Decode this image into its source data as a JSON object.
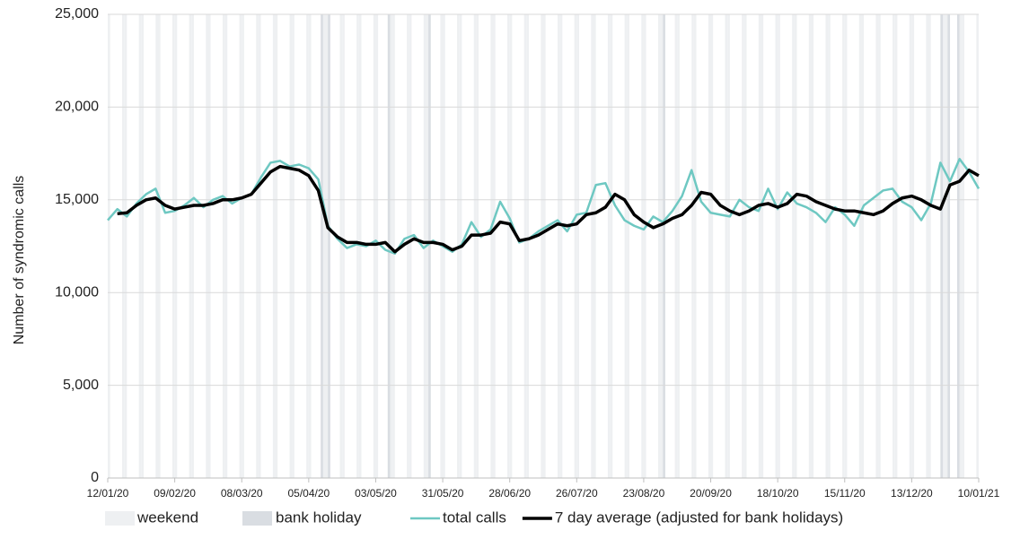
{
  "chart_data": {
    "type": "line",
    "y_label": "Number of syndromic calls",
    "x": [
      "2020-01-12",
      "2020-01-16",
      "2020-01-20",
      "2020-01-24",
      "2020-01-28",
      "2020-02-01",
      "2020-02-05",
      "2020-02-09",
      "2020-02-13",
      "2020-02-17",
      "2020-02-21",
      "2020-02-25",
      "2020-02-29",
      "2020-03-04",
      "2020-03-08",
      "2020-03-12",
      "2020-03-16",
      "2020-03-20",
      "2020-03-24",
      "2020-03-28",
      "2020-04-01",
      "2020-04-05",
      "2020-04-09",
      "2020-04-13",
      "2020-04-17",
      "2020-04-21",
      "2020-04-25",
      "2020-04-29",
      "2020-05-03",
      "2020-05-07",
      "2020-05-11",
      "2020-05-15",
      "2020-05-19",
      "2020-05-23",
      "2020-05-27",
      "2020-05-31",
      "2020-06-04",
      "2020-06-08",
      "2020-06-12",
      "2020-06-16",
      "2020-06-20",
      "2020-06-24",
      "2020-06-28",
      "2020-07-02",
      "2020-07-06",
      "2020-07-10",
      "2020-07-14",
      "2020-07-18",
      "2020-07-22",
      "2020-07-26",
      "2020-07-30",
      "2020-08-03",
      "2020-08-07",
      "2020-08-11",
      "2020-08-15",
      "2020-08-19",
      "2020-08-23",
      "2020-08-27",
      "2020-08-31",
      "2020-09-04",
      "2020-09-08",
      "2020-09-12",
      "2020-09-16",
      "2020-09-20",
      "2020-09-24",
      "2020-09-28",
      "2020-10-02",
      "2020-10-06",
      "2020-10-10",
      "2020-10-14",
      "2020-10-18",
      "2020-10-22",
      "2020-10-26",
      "2020-10-30",
      "2020-11-03",
      "2020-11-07",
      "2020-11-11",
      "2020-11-15",
      "2020-11-19",
      "2020-11-23",
      "2020-11-27",
      "2020-12-01",
      "2020-12-05",
      "2020-12-09",
      "2020-12-13",
      "2020-12-17",
      "2020-12-21",
      "2020-12-25",
      "2020-12-29",
      "2021-01-02",
      "2021-01-06",
      "2021-01-10"
    ],
    "series": [
      {
        "name": "total calls",
        "color": "#6ec8c2",
        "width": 2.5,
        "values": [
          13900,
          14500,
          14100,
          14800,
          15300,
          15600,
          14300,
          14400,
          14700,
          15100,
          14600,
          15000,
          15200,
          14800,
          15100,
          15300,
          16200,
          17000,
          17100,
          16800,
          16900,
          16700,
          16100,
          13600,
          12900,
          12400,
          12600,
          12500,
          12800,
          12300,
          12100,
          12900,
          13100,
          12400,
          12800,
          12500,
          12200,
          12600,
          13800,
          13000,
          13400,
          14900,
          14000,
          12700,
          12900,
          13300,
          13600,
          13900,
          13300,
          14200,
          14300,
          15800,
          15900,
          14700,
          13900,
          13600,
          13400,
          14100,
          13800,
          14400,
          15200,
          16600,
          14900,
          14300,
          14200,
          14100,
          15000,
          14600,
          14400,
          15600,
          14500,
          15400,
          14800,
          14600,
          14300,
          13800,
          14600,
          14200,
          13600,
          14700,
          15100,
          15500,
          15600,
          14900,
          14600,
          13900,
          14800,
          17000,
          16000,
          17200,
          16500,
          15600
        ]
      },
      {
        "name": "7 day average (adjusted for bank holidays)",
        "color": "#000000",
        "width": 3.5,
        "values": [
          null,
          14250,
          14300,
          14700,
          15000,
          15100,
          14700,
          14500,
          14600,
          14700,
          14700,
          14800,
          15000,
          15000,
          15100,
          15300,
          15900,
          16500,
          16800,
          16700,
          16600,
          16300,
          15500,
          13500,
          13000,
          12700,
          12700,
          12600,
          12600,
          12700,
          12200,
          12600,
          12900,
          12700,
          12700,
          12600,
          12300,
          12500,
          13100,
          13100,
          13200,
          13800,
          13700,
          12800,
          12900,
          13100,
          13400,
          13700,
          13600,
          13700,
          14200,
          14300,
          14600,
          15300,
          15000,
          14200,
          13800,
          13500,
          13700,
          14000,
          14200,
          14700,
          15400,
          15300,
          14700,
          14400,
          14200,
          14400,
          14700,
          14800,
          14600,
          14800,
          15300,
          15200,
          14900,
          14700,
          14500,
          14400,
          14400,
          14300,
          14200,
          14400,
          14800,
          15100,
          15200,
          15000,
          14700,
          14500,
          15800,
          16000,
          16600,
          16300
        ]
      }
    ],
    "shading": [
      {
        "name": "weekend",
        "color": "#eef0f2",
        "weekdays": [
          0,
          6
        ]
      },
      {
        "name": "bank holiday",
        "color": "#d9dde2",
        "dates": [
          "2020-04-10",
          "2020-04-13",
          "2020-05-08",
          "2020-05-25",
          "2020-08-31",
          "2020-12-25",
          "2020-12-28",
          "2021-01-01"
        ]
      }
    ],
    "xlim": [
      "2020-01-12",
      "2021-01-10"
    ],
    "xticks": [
      {
        "value": "2020-01-12",
        "label": "12/01/20"
      },
      {
        "value": "2020-02-09",
        "label": "09/02/20"
      },
      {
        "value": "2020-03-08",
        "label": "08/03/20"
      },
      {
        "value": "2020-04-05",
        "label": "05/04/20"
      },
      {
        "value": "2020-05-03",
        "label": "03/05/20"
      },
      {
        "value": "2020-05-31",
        "label": "31/05/20"
      },
      {
        "value": "2020-06-28",
        "label": "28/06/20"
      },
      {
        "value": "2020-07-26",
        "label": "26/07/20"
      },
      {
        "value": "2020-08-23",
        "label": "23/08/20"
      },
      {
        "value": "2020-09-20",
        "label": "20/09/20"
      },
      {
        "value": "2020-10-18",
        "label": "18/10/20"
      },
      {
        "value": "2020-11-15",
        "label": "15/11/20"
      },
      {
        "value": "2020-12-13",
        "label": "13/12/20"
      },
      {
        "value": "2021-01-10",
        "label": "10/01/21"
      }
    ],
    "ylim": [
      0,
      25000
    ],
    "yticks": [
      0,
      {
        "value": 5000,
        "label": "5,000"
      },
      {
        "value": 10000,
        "label": "10,000"
      },
      {
        "value": 15000,
        "label": "15,000"
      },
      {
        "value": 20000,
        "label": "20,000"
      },
      {
        "value": 25000,
        "label": "25,000"
      }
    ],
    "grid": true
  }
}
